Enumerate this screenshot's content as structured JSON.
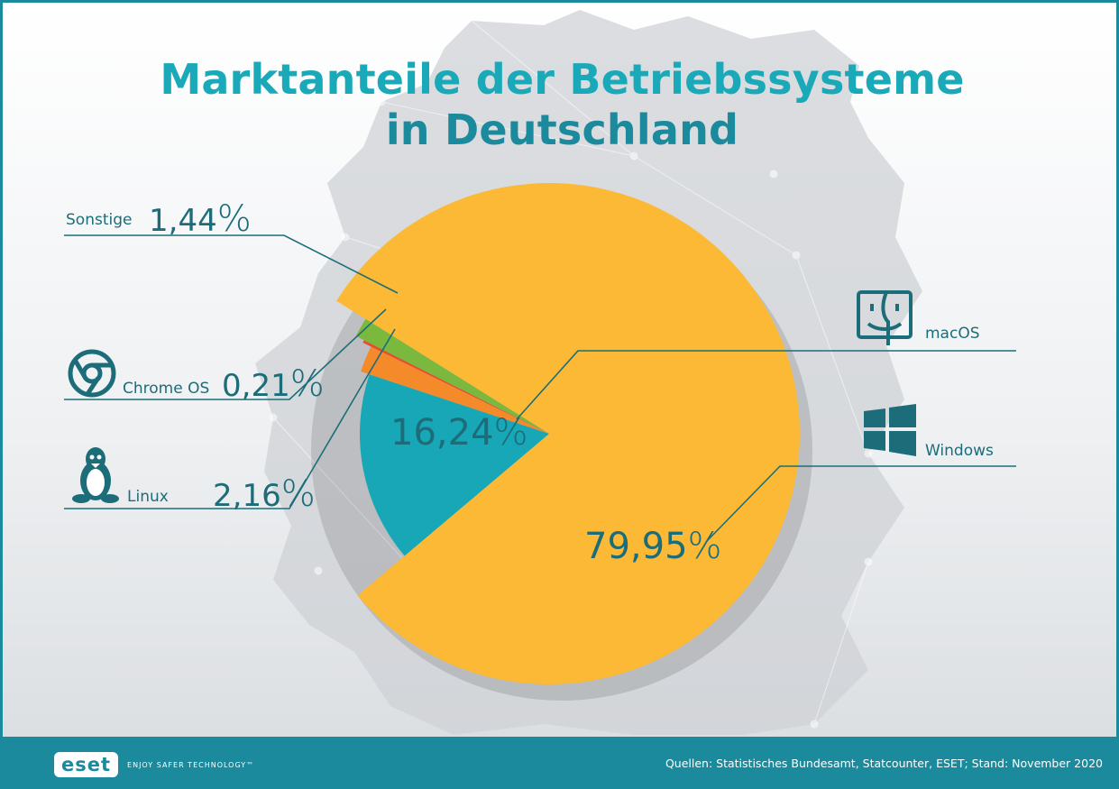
{
  "title_line1": "Marktanteile der Betriebssysteme",
  "title_line2": "in Deutschland",
  "chart_data": {
    "type": "pie",
    "categories": [
      "Windows",
      "macOS",
      "Linux",
      "Chrome OS",
      "Sonstige"
    ],
    "values": [
      79.95,
      16.24,
      2.16,
      0.21,
      1.44
    ],
    "value_labels": [
      "79,95",
      "16,24",
      "2,16",
      "0,21",
      "1,44"
    ],
    "unit": "%",
    "colors": [
      "#fbb936",
      "#17a7b6",
      "#f48a29",
      "#e4502b",
      "#7ab83e"
    ]
  },
  "icons": {
    "windows": "windows-logo-icon",
    "macos": "apple-finder-icon",
    "linux": "tux-penguin-icon",
    "chromeos": "chrome-logo-icon"
  },
  "footer": {
    "logo": "eset",
    "tagline": "ENJOY SAFER TECHNOLOGY™",
    "source": "Quellen: Statistisches Bundesamt, Statcounter, ESET; Stand: November 2020"
  }
}
